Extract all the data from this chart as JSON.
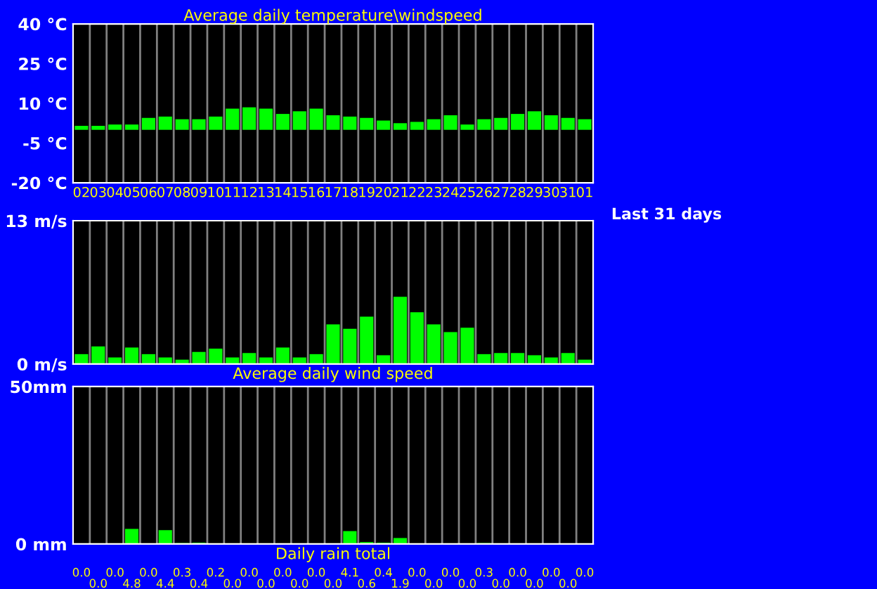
{
  "chart_data": [
    {
      "type": "bar",
      "title": "Average daily temperature\\windspeed",
      "annotations": [
        "Last 31 days"
      ],
      "categories": [
        "02",
        "03",
        "04",
        "05",
        "06",
        "07",
        "08",
        "09",
        "10",
        "11",
        "12",
        "13",
        "14",
        "15",
        "16",
        "17",
        "18",
        "19",
        "20",
        "21",
        "22",
        "23",
        "24",
        "25",
        "26",
        "27",
        "28",
        "29",
        "30",
        "31",
        "01"
      ],
      "values": [
        1.5,
        1.5,
        2,
        2,
        4.5,
        5,
        4,
        4,
        5,
        8,
        8.5,
        8,
        6,
        7,
        8,
        5.5,
        5,
        4.5,
        3.5,
        2.5,
        3,
        4,
        5.5,
        2,
        4,
        4.5,
        6,
        7,
        5.5,
        4.5,
        4
      ],
      "color": "#00ff00",
      "ylim": [
        -20,
        40
      ],
      "yticks": [
        {
          "value": -20,
          "label": "-20 °C"
        },
        {
          "value": -5,
          "label": "-5 °C"
        },
        {
          "value": 10,
          "label": "10 °C"
        },
        {
          "value": 25,
          "label": "25 °C"
        },
        {
          "value": 40,
          "label": "40 °C"
        }
      ],
      "grid": "x"
    },
    {
      "type": "bar",
      "xlabel": "Average daily wind speed",
      "categories": [
        "02",
        "03",
        "04",
        "05",
        "06",
        "07",
        "08",
        "09",
        "10",
        "11",
        "12",
        "13",
        "14",
        "15",
        "16",
        "17",
        "18",
        "19",
        "20",
        "21",
        "22",
        "23",
        "24",
        "25",
        "26",
        "27",
        "28",
        "29",
        "30",
        "31",
        "01"
      ],
      "values": [
        0.9,
        1.6,
        0.6,
        1.5,
        0.9,
        0.6,
        0.4,
        1.1,
        1.4,
        0.6,
        1,
        0.6,
        1.5,
        0.6,
        0.9,
        3.6,
        3.2,
        4.3,
        0.8,
        6.1,
        4.7,
        3.6,
        2.9,
        3.3,
        0.9,
        1,
        1,
        0.8,
        0.6,
        1,
        0.4
      ],
      "color": "#00ff00",
      "ylim": [
        0,
        13
      ],
      "yticks": [
        {
          "value": 0,
          "label": "0 m/s"
        },
        {
          "value": 13,
          "label": "13 m/s"
        }
      ],
      "grid": "x",
      "tick_labels": "y"
    },
    {
      "type": "bar",
      "xlabel": "Daily rain total",
      "categories": [
        "02",
        "03",
        "04",
        "05",
        "06",
        "07",
        "08",
        "09",
        "10",
        "11",
        "12",
        "13",
        "14",
        "15",
        "16",
        "17",
        "18",
        "19",
        "20",
        "21",
        "22",
        "23",
        "24",
        "25",
        "26",
        "27",
        "28",
        "29",
        "30",
        "31",
        "01"
      ],
      "values": [
        0,
        0,
        0,
        4.8,
        0,
        4.4,
        0.3,
        0.4,
        0.2,
        0,
        0,
        0,
        0,
        0,
        0,
        0,
        4.1,
        0.6,
        0.4,
        1.9,
        0,
        0,
        0,
        0,
        0.3,
        0,
        0,
        0,
        0,
        0,
        0
      ],
      "color": "#00ff00",
      "value_labels": [
        "0.0",
        "0.0",
        "0.0",
        "4.8",
        "0.0",
        "4.4",
        "0.3",
        "0.4",
        "0.2",
        "0.0",
        "0.0",
        "0.0",
        "0.0",
        "0.0",
        "0.0",
        "0.0",
        "4.1",
        "0.6",
        "0.4",
        "1.9",
        "0.0",
        "0.0",
        "0.0",
        "0.0",
        "0.3",
        "0.0",
        "0.0",
        "0.0",
        "0.0",
        "0.0",
        "0.0"
      ],
      "ylim": [
        0,
        50
      ],
      "yticks": [
        {
          "value": 0,
          "label": "0 mm"
        },
        {
          "value": 50,
          "label": "50mm"
        }
      ],
      "grid": "x",
      "tick_labels": "y"
    }
  ]
}
